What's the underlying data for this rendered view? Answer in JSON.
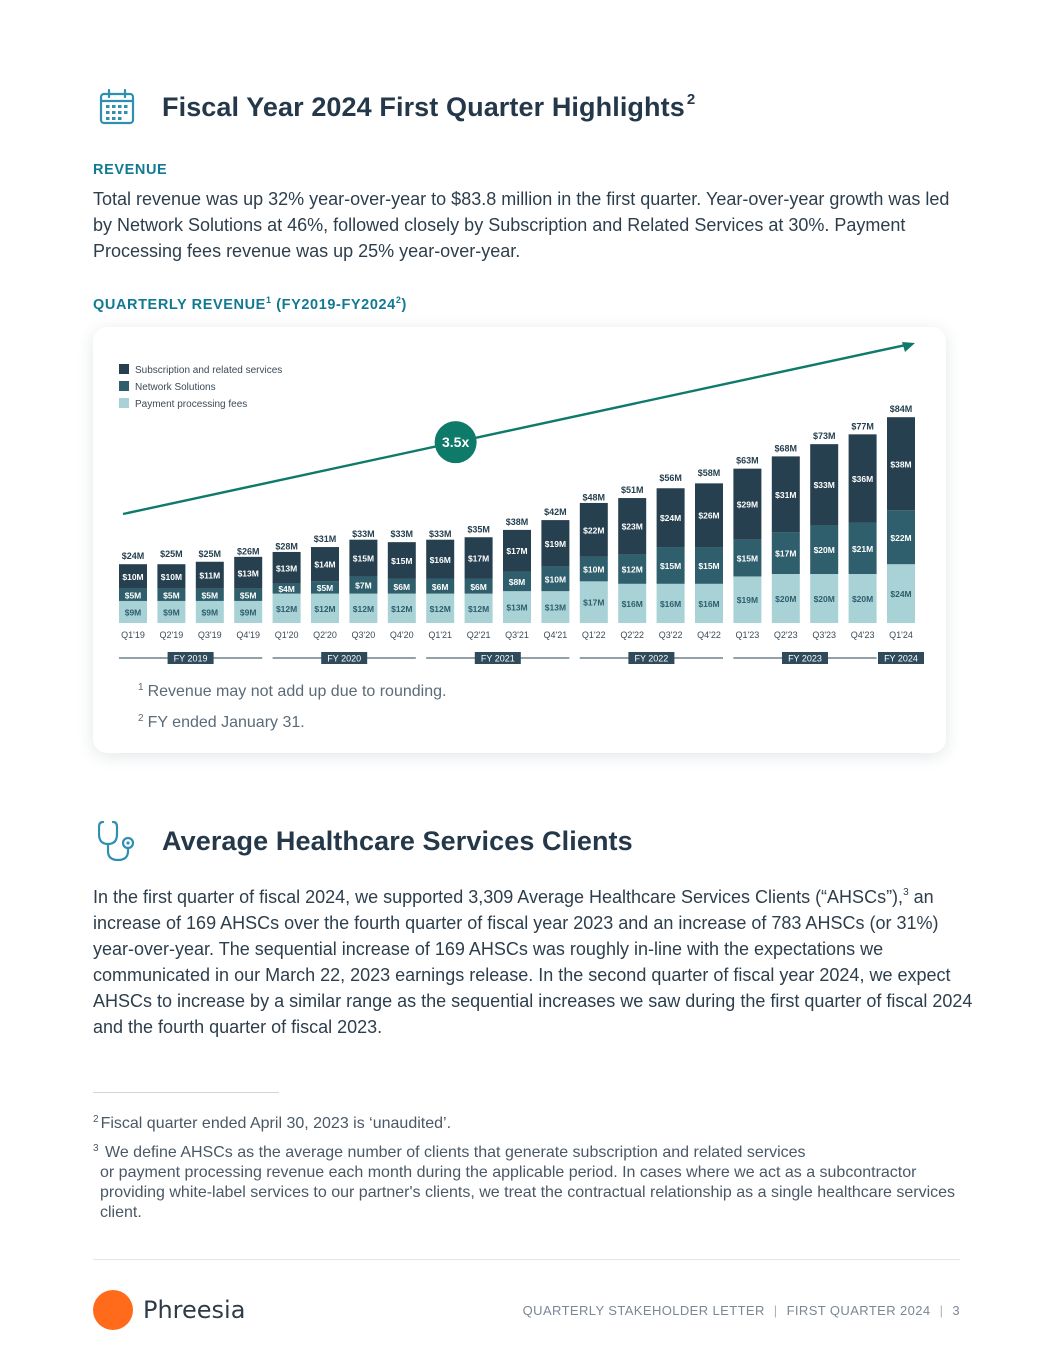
{
  "section1": {
    "title": "Fiscal Year 2024 First Quarter Highlights",
    "title_sup": "2",
    "revenue_label": "REVENUE",
    "revenue_text": "Total revenue was up 32% year-over-year to $83.8 million in the first quarter. Year-over-year growth was led by Network Solutions at 46%, followed closely by Subscription and Related Services at 30%. Payment Processing fees revenue was up 25% year-over-year.",
    "chart_label": "QUARTERLY REVENUE",
    "chart_label_sup1": "1",
    "chart_label_mid": " (FY2019-FY2024",
    "chart_label_sup2": "2",
    "chart_label_end": ")"
  },
  "chart_data": {
    "type": "bar",
    "stacked": true,
    "title": "QUARTERLY REVENUE (FY2019-FY2024)",
    "categories": [
      "Q1'19",
      "Q2'19",
      "Q3'19",
      "Q4'19",
      "Q1'20",
      "Q2'20",
      "Q3'20",
      "Q4'20",
      "Q1'21",
      "Q2'21",
      "Q3'21",
      "Q4'21",
      "Q1'22",
      "Q2'22",
      "Q3'22",
      "Q4'22",
      "Q1'23",
      "Q2'23",
      "Q3'23",
      "Q4'23",
      "Q1'24"
    ],
    "series": [
      {
        "name": "Payment processing fees",
        "color": "#a8d2d6",
        "values": [
          9,
          9,
          9,
          9,
          12,
          12,
          12,
          12,
          12,
          12,
          13,
          13,
          17,
          16,
          16,
          16,
          19,
          20,
          20,
          20,
          24
        ]
      },
      {
        "name": "Network Solutions",
        "color": "#2f5e6c",
        "values": [
          5,
          5,
          5,
          5,
          4,
          5,
          7,
          6,
          6,
          6,
          8,
          10,
          10,
          12,
          15,
          15,
          15,
          17,
          20,
          21,
          22
        ]
      },
      {
        "name": "Subscription and related services",
        "color": "#26404f",
        "values": [
          10,
          10,
          11,
          13,
          13,
          14,
          15,
          15,
          16,
          17,
          17,
          19,
          22,
          23,
          24,
          26,
          29,
          31,
          33,
          36,
          38
        ]
      }
    ],
    "totals": [
      24,
      25,
      25,
      26,
      28,
      31,
      33,
      33,
      33,
      35,
      38,
      42,
      48,
      51,
      56,
      58,
      63,
      68,
      73,
      77,
      84
    ],
    "legend": [
      "Subscription and related services",
      "Network Solutions",
      "Payment processing fees"
    ],
    "legend_position": "top-left",
    "growth_annotation": "3.5x",
    "fiscal_years": [
      {
        "label": "FY 2019",
        "start": 0,
        "end": 3
      },
      {
        "label": "FY 2020",
        "start": 4,
        "end": 7
      },
      {
        "label": "FY 2021",
        "start": 8,
        "end": 11
      },
      {
        "label": "FY 2022",
        "start": 12,
        "end": 15
      },
      {
        "label": "FY 2023",
        "start": 16,
        "end": 19
      },
      {
        "label": "FY 2024",
        "start": 20,
        "end": 20
      }
    ],
    "ylim": [
      0,
      90
    ],
    "unit_prefix": "$",
    "unit_suffix": "M"
  },
  "chart_notes": {
    "note1_sup": "1",
    "note1": "Revenue may not add up due to rounding.",
    "note2_sup": "2",
    "note2": "FY ended January 31."
  },
  "section2": {
    "title": "Average Healthcare Services Clients",
    "para_a": "In the first quarter of fiscal 2024, we supported 3,309 Average Healthcare Services Clients (“AHSCs”),",
    "para_sup": "3",
    "para_b": " an increase of 169 AHSCs over the fourth quarter of fiscal year 2023 and an increase of 783 AHSCs (or 31%) year-over-year. The sequential increase of 169 AHSCs was roughly in-line with the expectations we communicated in our March 22, 2023 earnings release. In the second quarter of fiscal year 2024, we expect AHSCs to increase by a similar range as the sequential increases we saw during the first quarter of fiscal 2024 and the fourth quarter of fiscal 2023."
  },
  "footnotes": {
    "fn2_sup": "2",
    "fn2": "Fiscal quarter ended April 30, 2023 is ‘unaudited’.",
    "fn3_sup": "3",
    "fn3_line1": "We define AHSCs as the average number of clients that generate subscription and related services",
    "fn3_rest": "or payment processing revenue each month during the applicable period. In cases where we act as a subcontractor providing white-label services to our partner's clients, we treat the contractual relationship as a single healthcare services client."
  },
  "footer": {
    "brand": "Phreesia",
    "doc_title": "QUARTERLY STAKEHOLDER LETTER",
    "quarter": "FIRST QUARTER 2024",
    "page_number": "3",
    "brand_color": "#ff6b1a"
  },
  "icons": [
    "calendar-icon",
    "stethoscope-icon"
  ]
}
